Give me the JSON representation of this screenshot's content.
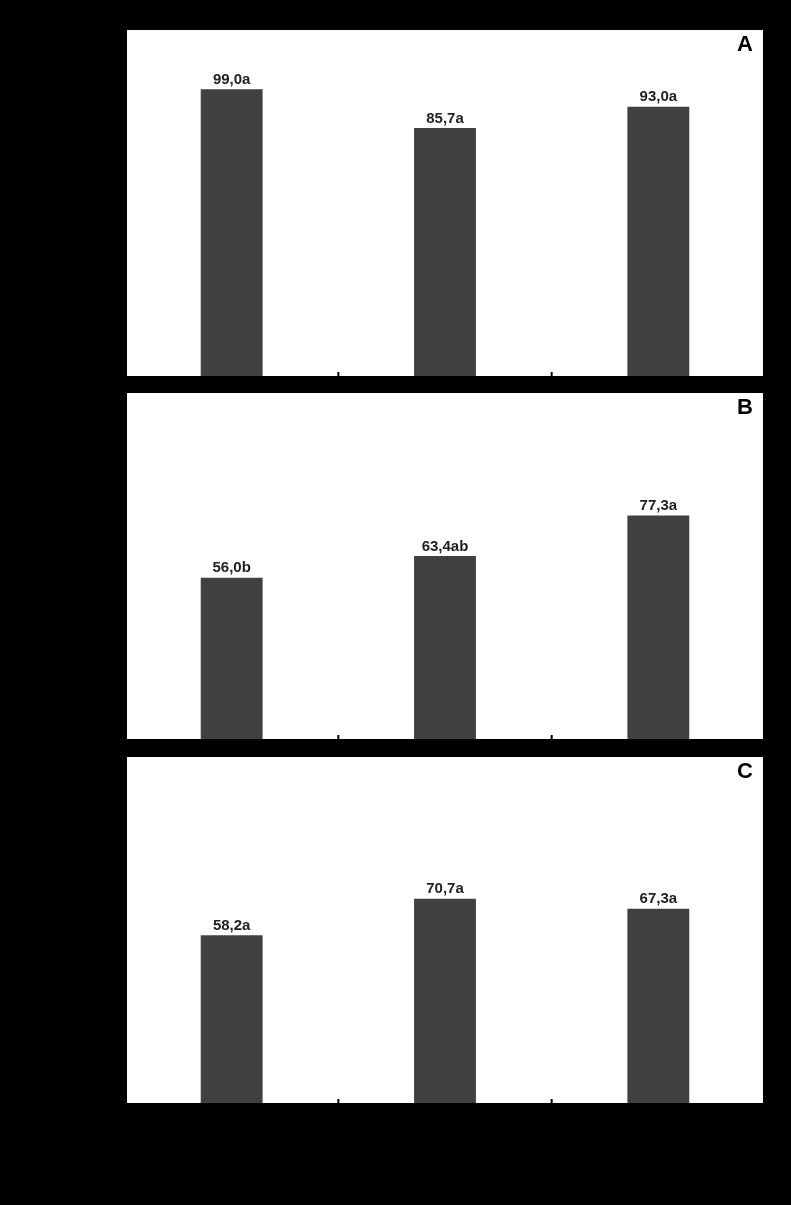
{
  "chart_data": [
    {
      "type": "bar",
      "title": "A",
      "categories": [
        null,
        null,
        null
      ],
      "values": [
        99.0,
        85.7,
        93.0
      ],
      "value_labels": [
        "99,0a",
        "85,7a",
        "93,0a"
      ],
      "color": "#404040",
      "ylim": [
        0,
        120
      ],
      "data_labels": true,
      "tick_labels": false
    },
    {
      "type": "bar",
      "title": "B",
      "categories": [
        null,
        null,
        null
      ],
      "values": [
        56.0,
        63.4,
        77.3
      ],
      "value_labels": [
        "56,0b",
        "63,4ab",
        "77,3a"
      ],
      "color": "#404040",
      "ylim": [
        0,
        120
      ],
      "data_labels": true,
      "tick_labels": false
    },
    {
      "type": "bar",
      "title": "C",
      "categories": [
        null,
        null,
        null
      ],
      "values": [
        58.2,
        70.7,
        67.3
      ],
      "value_labels": [
        "58,2a",
        "70,7a",
        "67,3a"
      ],
      "color": "#404040",
      "ylim": [
        0,
        120
      ],
      "data_labels": true,
      "tick_labels": false
    }
  ]
}
